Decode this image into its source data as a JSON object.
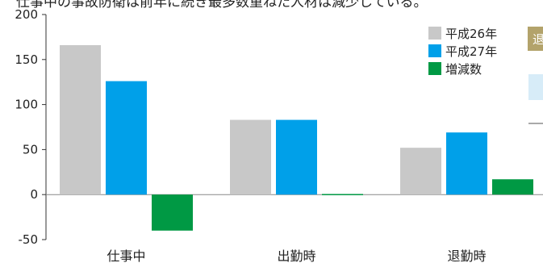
{
  "chart_data": {
    "type": "bar",
    "categories": [
      "仕事中",
      "出勤時",
      "退勤時"
    ],
    "series": [
      {
        "name": "平成26年",
        "values": [
          166,
          83,
          52
        ],
        "color": "#c8c8c8"
      },
      {
        "name": "平成27年",
        "values": [
          126,
          83,
          69
        ],
        "color": "#00a0e9"
      },
      {
        "name": "増減数",
        "values": [
          -40,
          0,
          17
        ],
        "color": "#009944"
      }
    ],
    "ylim": [
      -50,
      200
    ],
    "yticks": [
      -50,
      0,
      50,
      100,
      150,
      200
    ],
    "grid": false,
    "legend": "top-right"
  },
  "clipped_header": "仕事中の事故防衛は前年に続き最多数重ねた人材は減少している。",
  "side_panel": {
    "tab_char": "退",
    "box_color": "#d7ecf8",
    "tab_color": "#b3a36b"
  }
}
